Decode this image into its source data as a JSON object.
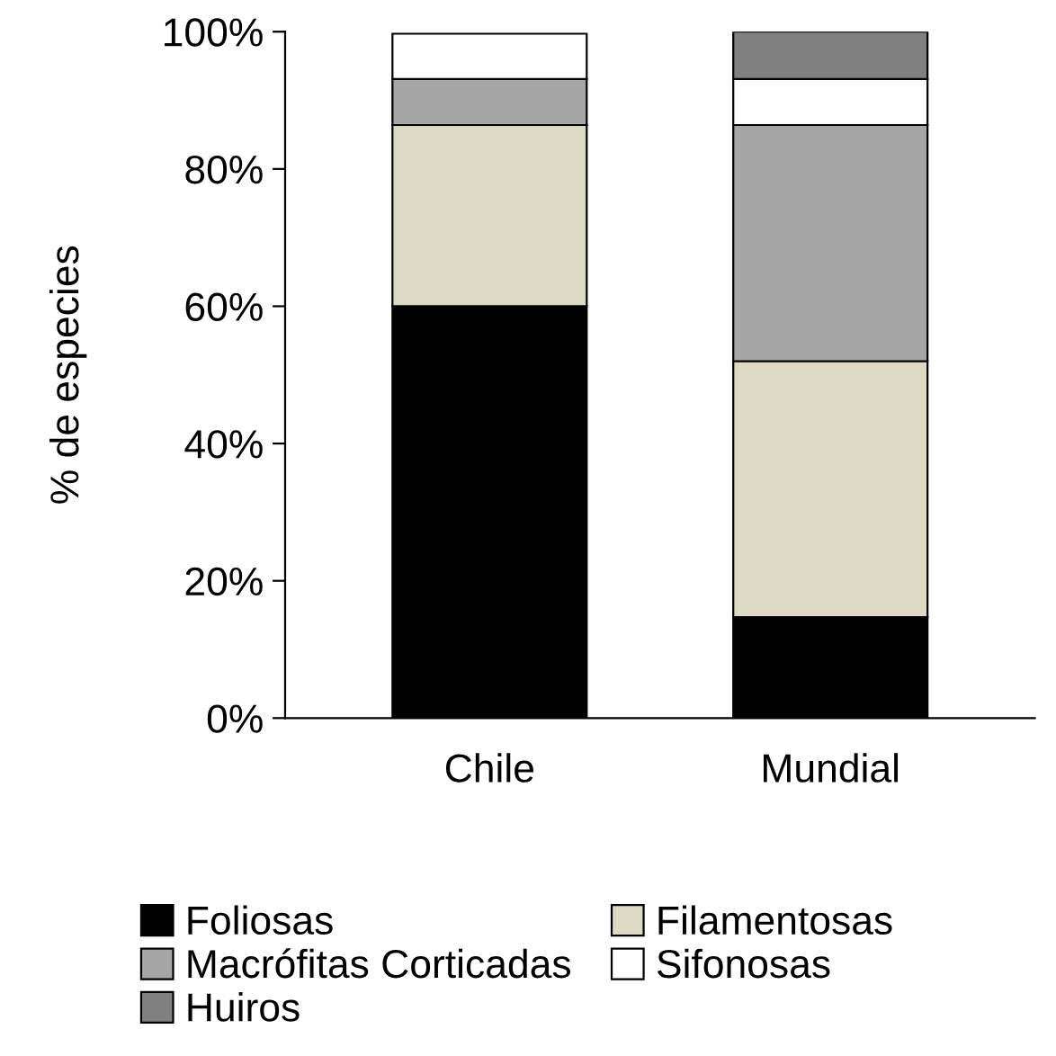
{
  "chart_data": {
    "type": "bar",
    "stacked": true,
    "ylabel": "% de especies",
    "categories": [
      "Chile",
      "Mundial"
    ],
    "series": [
      {
        "name": "Foliosas",
        "color": "#000000",
        "values": [
          60,
          14.7
        ]
      },
      {
        "name": "Filamentosas",
        "color": "#ddd9c3",
        "values": [
          26.4,
          37.3
        ]
      },
      {
        "name": "Macrófitas Corticadas",
        "color": "#a6a6a6",
        "values": [
          6.7,
          34.4
        ]
      },
      {
        "name": "Sifonosas",
        "color": "#ffffff",
        "values": [
          6.6,
          6.7
        ]
      },
      {
        "name": "Huiros",
        "color": "#808080",
        "values": [
          null,
          6.9
        ]
      }
    ],
    "ylim": [
      0,
      100
    ],
    "yticks": [
      {
        "value": 0,
        "label": "0%"
      },
      {
        "value": 20,
        "label": "20%"
      },
      {
        "value": 40,
        "label": "40%"
      },
      {
        "value": 60,
        "label": "60%"
      },
      {
        "value": 80,
        "label": "80%"
      },
      {
        "value": 100,
        "label": "100%"
      }
    ],
    "grid": false,
    "legend": "bottom"
  }
}
